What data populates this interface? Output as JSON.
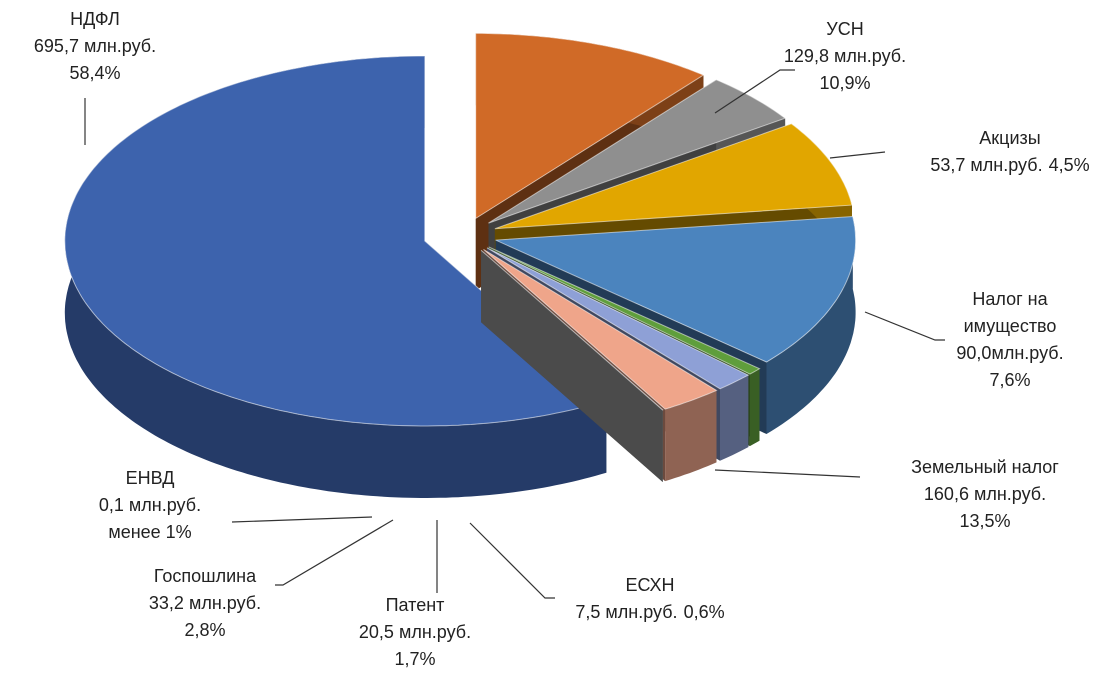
{
  "chart_data": {
    "type": "pie",
    "categories": [
      "НДФЛ",
      "УСН",
      "Акцизы",
      "Налог на имущество",
      "Земельный налог",
      "ЕСХН",
      "Патент",
      "Госпошлина",
      "ЕНВД"
    ],
    "values": [
      695.7,
      129.8,
      53.7,
      90.0,
      160.6,
      7.5,
      20.5,
      33.2,
      0.1
    ],
    "value_labels": [
      "695,7 млн.руб.",
      "129,8 млн.руб.",
      "53,7 млн.руб.",
      "90,0млн.руб.",
      "160,6 млн.руб.",
      "7,5 млн.руб.",
      "20,5 млн.руб.",
      "33,2 млн.руб.",
      "0,1 млн.руб."
    ],
    "percents": [
      {
        "value": 58.4,
        "label": "58,4%"
      },
      {
        "value": 10.9,
        "label": "10,9%"
      },
      {
        "value": 4.5,
        "label": "4,5%"
      },
      {
        "value": 7.6,
        "label": "7,6%"
      },
      {
        "value": 13.5,
        "label": "13,5%"
      },
      {
        "value": 0.6,
        "label": "0,6%"
      },
      {
        "value": 1.7,
        "label": "1,7%"
      },
      {
        "value": 2.8,
        "label": "2,8%"
      },
      {
        "value": null,
        "label": "менее 1%"
      }
    ],
    "colors": [
      "#3d63ad",
      "#d06a27",
      "#8f8f8f",
      "#e1a600",
      "#4b84be",
      "#5f9e3c",
      "#8ea0d6",
      "#efa58a",
      "#a6a6a6"
    ]
  }
}
